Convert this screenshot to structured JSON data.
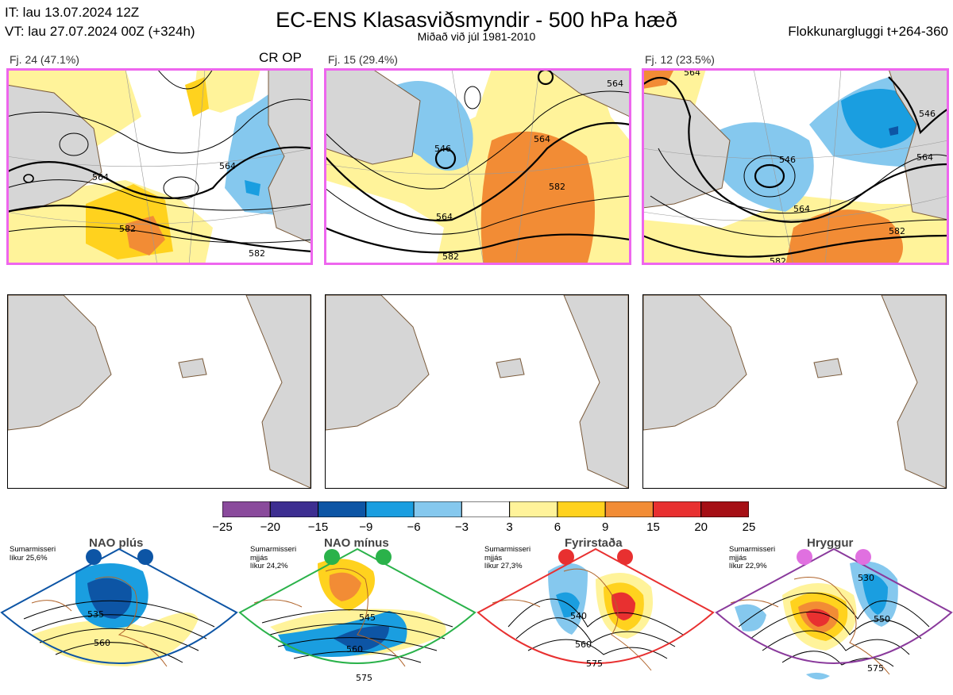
{
  "header": {
    "it": "IT: lau 13.07.2024 12Z",
    "vt": "VT: lau 27.07.2024 00Z  (+324h)",
    "title": "EC-ENS Klasasviðsmyndir - 500 hPa hæð",
    "subtitle": "Miðað við júl 1981-2010",
    "window": "Flokkunargluggi t+264-360"
  },
  "clusters": [
    {
      "label": "Fj. 24 (47.1%)",
      "tag": "CR OP",
      "contours": [
        "564",
        "564",
        "582",
        "582"
      ],
      "frame_color": "#ee66ee"
    },
    {
      "label": "Fj. 15 (29.4%)",
      "tag": "",
      "contours": [
        "564",
        "546",
        "564",
        "564",
        "582",
        "582"
      ],
      "frame_color": "#ee66ee"
    },
    {
      "label": "Fj. 12 (23.5%)",
      "tag": "",
      "contours": [
        "564",
        "546",
        "546",
        "564",
        "564",
        "582",
        "582"
      ],
      "frame_color": "#ee66ee"
    }
  ],
  "chart_data": {
    "type": "heatmap",
    "colorbar": {
      "ticks": [
        "−25",
        "−20",
        "−15",
        "−9",
        "−6",
        "−3",
        "3",
        "6",
        "9",
        "15",
        "20",
        "25"
      ],
      "boundaries": [
        -25,
        -20,
        -15,
        -9,
        -6,
        -3,
        3,
        6,
        9,
        15,
        20,
        25
      ],
      "colors": [
        "#8a4a9c",
        "#3d2e91",
        "#0d55a5",
        "#1a9ee0",
        "#85c8ee",
        "#ffffff",
        "#fff39a",
        "#ffd21e",
        "#f28c35",
        "#e83030",
        "#a50f15"
      ]
    }
  },
  "regimes": [
    {
      "name": "NAO plús",
      "note": [
        "Sumarmisseri",
        "líkur 25,6%"
      ],
      "contours": [
        "535",
        "560"
      ],
      "color": "#0d55a5"
    },
    {
      "name": "NAO mínus",
      "note": [
        "Sumarmisseri",
        "mjjás",
        "líkur 24,2%"
      ],
      "contours": [
        "545",
        "560",
        "575"
      ],
      "color": "#2ab24a"
    },
    {
      "name": "Fyrirstaða",
      "note": [
        "Sumarmisseri",
        "mjjás",
        "líkur 27,3%"
      ],
      "contours": [
        "540",
        "560",
        "575"
      ],
      "color": "#e83030"
    },
    {
      "name": "Hryggur",
      "note": [
        "Sumarmisseri",
        "mjjás",
        "líkur 22,9%"
      ],
      "contours": [
        "530",
        "550",
        "575"
      ],
      "color": "#e070e0"
    }
  ]
}
